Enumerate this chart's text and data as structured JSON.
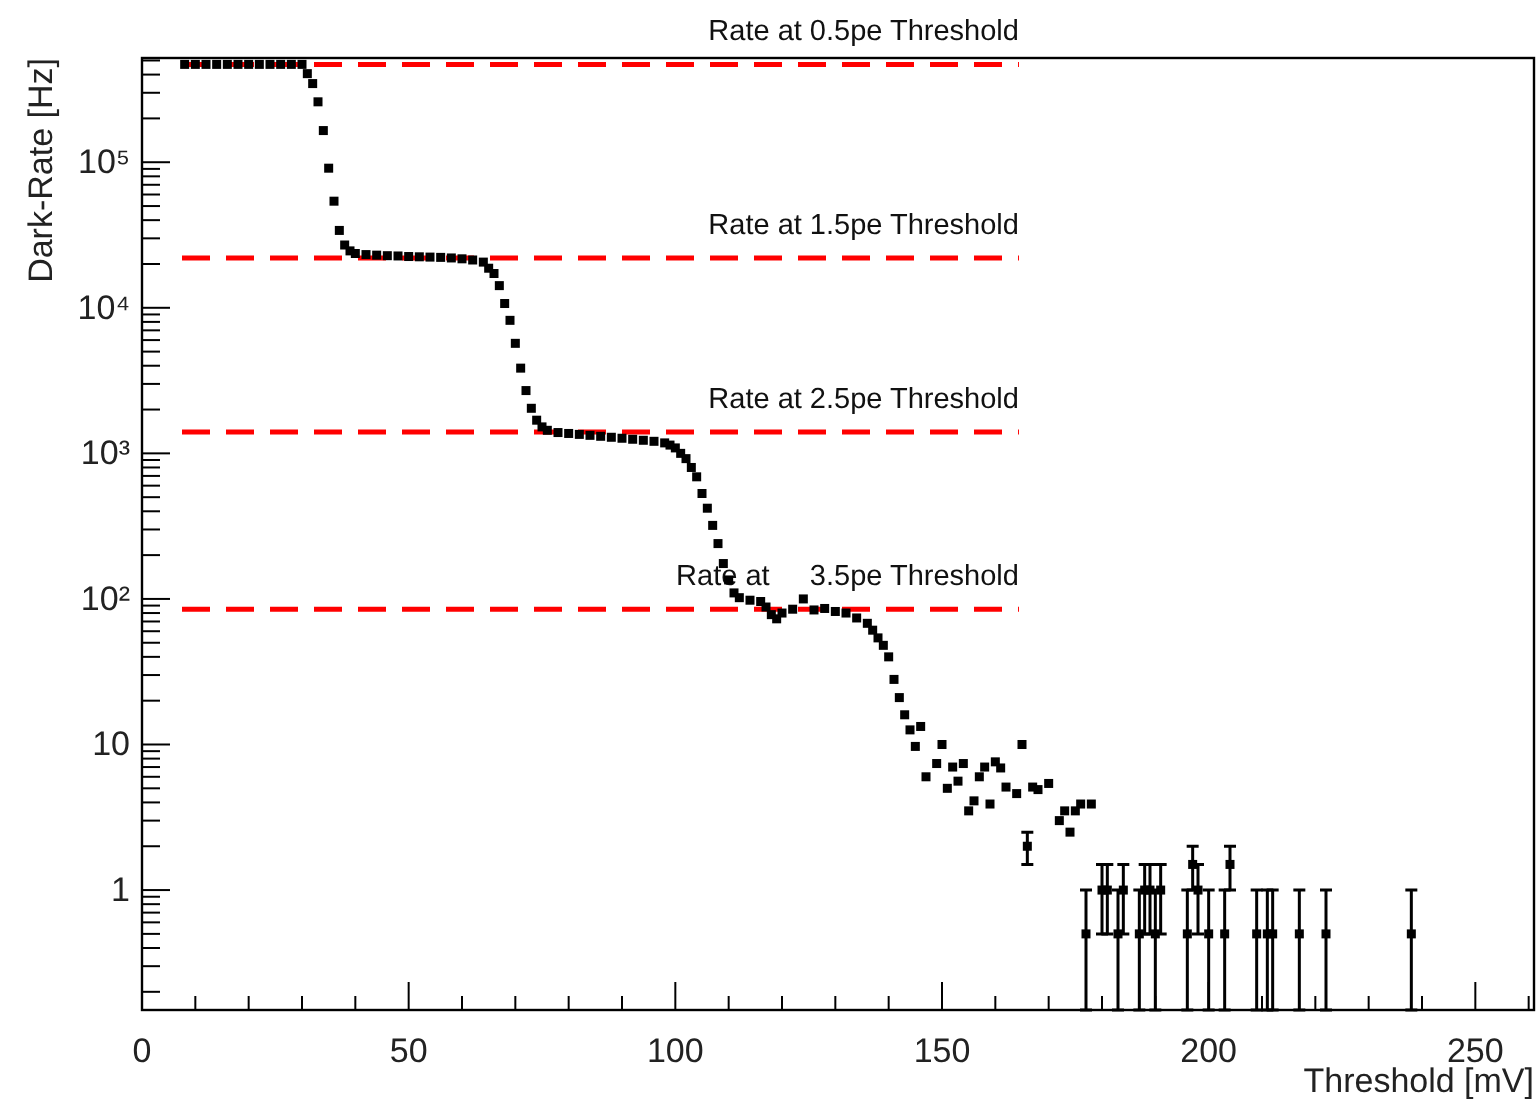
{
  "chart_data": {
    "type": "scatter",
    "xlabel": "Threshold [mV]",
    "ylabel": "Dark-Rate [Hz]",
    "log": "y",
    "marker": "square",
    "grid": false,
    "xlim": [
      0,
      261
    ],
    "ylim": [
      0.15,
      520000
    ],
    "xticks": [
      0,
      {
        "value": 10,
        "label": null
      },
      {
        "value": 20,
        "label": null
      },
      {
        "value": 30,
        "label": null
      },
      {
        "value": 40,
        "label": null
      },
      50,
      {
        "value": 60,
        "label": null
      },
      {
        "value": 70,
        "label": null
      },
      {
        "value": 80,
        "label": null
      },
      {
        "value": 90,
        "label": null
      },
      100,
      {
        "value": 110,
        "label": null
      },
      {
        "value": 120,
        "label": null
      },
      {
        "value": 130,
        "label": null
      },
      {
        "value": 140,
        "label": null
      },
      150,
      {
        "value": 160,
        "label": null
      },
      {
        "value": 170,
        "label": null
      },
      {
        "value": 180,
        "label": null
      },
      {
        "value": 190,
        "label": null
      },
      200,
      {
        "value": 210,
        "label": null
      },
      {
        "value": 220,
        "label": null
      },
      {
        "value": 230,
        "label": null
      },
      {
        "value": 240,
        "label": null
      },
      250,
      {
        "value": 260,
        "label": null
      }
    ],
    "yticks": [
      {
        "value": 0.2,
        "label": null
      },
      {
        "value": 0.3,
        "label": null
      },
      {
        "value": 0.4,
        "label": null
      },
      {
        "value": 0.5,
        "label": null
      },
      {
        "value": 0.6,
        "label": null
      },
      {
        "value": 0.7,
        "label": null
      },
      {
        "value": 0.8,
        "label": null
      },
      {
        "value": 0.9,
        "label": null
      },
      1,
      {
        "value": 2,
        "label": null
      },
      {
        "value": 3,
        "label": null
      },
      {
        "value": 4,
        "label": null
      },
      {
        "value": 5,
        "label": null
      },
      {
        "value": 6,
        "label": null
      },
      {
        "value": 7,
        "label": null
      },
      {
        "value": 8,
        "label": null
      },
      {
        "value": 9,
        "label": null
      },
      10,
      {
        "value": 20,
        "label": null
      },
      {
        "value": 30,
        "label": null
      },
      {
        "value": 40,
        "label": null
      },
      {
        "value": 50,
        "label": null
      },
      {
        "value": 60,
        "label": null
      },
      {
        "value": 70,
        "label": null
      },
      {
        "value": 80,
        "label": null
      },
      {
        "value": 90,
        "label": null
      },
      {
        "value": 100,
        "label": "10²"
      },
      {
        "value": 200,
        "label": null
      },
      {
        "value": 300,
        "label": null
      },
      {
        "value": 400,
        "label": null
      },
      {
        "value": 500,
        "label": null
      },
      {
        "value": 600,
        "label": null
      },
      {
        "value": 700,
        "label": null
      },
      {
        "value": 800,
        "label": null
      },
      {
        "value": 900,
        "label": null
      },
      {
        "value": 1000,
        "label": "10³"
      },
      {
        "value": 2000,
        "label": null
      },
      {
        "value": 3000,
        "label": null
      },
      {
        "value": 4000,
        "label": null
      },
      {
        "value": 5000,
        "label": null
      },
      {
        "value": 6000,
        "label": null
      },
      {
        "value": 7000,
        "label": null
      },
      {
        "value": 8000,
        "label": null
      },
      {
        "value": 9000,
        "label": null
      },
      {
        "value": 10000,
        "label": "10⁴"
      },
      {
        "value": 20000,
        "label": null
      },
      {
        "value": 30000,
        "label": null
      },
      {
        "value": 40000,
        "label": null
      },
      {
        "value": 50000,
        "label": null
      },
      {
        "value": 60000,
        "label": null
      },
      {
        "value": 70000,
        "label": null
      },
      {
        "value": 80000,
        "label": null
      },
      {
        "value": 90000,
        "label": null
      },
      {
        "value": 100000,
        "label": "10⁵"
      },
      {
        "value": 200000,
        "label": null
      },
      {
        "value": 300000,
        "label": null
      },
      {
        "value": 400000,
        "label": null
      },
      {
        "value": 500000,
        "label": null
      }
    ],
    "ref_lines": [
      {
        "axis": "y",
        "value": 470000,
        "label": "Rate at 0.5pe Threshold",
        "color": "#ff0000",
        "line_style": "dashed"
      },
      {
        "axis": "y",
        "value": 22000,
        "label": "Rate at 1.5pe Threshold",
        "color": "#ff0000",
        "line_style": "dashed"
      },
      {
        "axis": "y",
        "value": 1400,
        "label": "Rate at 2.5pe Threshold",
        "color": "#ff0000",
        "line_style": "dashed"
      },
      {
        "axis": "y",
        "value": 85,
        "label": "Rate at     3.5pe Threshold",
        "color": "#ff0000",
        "line_style": "dashed"
      }
    ],
    "series": [
      {
        "color": "#000000",
        "x": [
          8,
          10,
          12,
          14,
          16,
          18,
          20,
          22,
          24,
          26,
          28,
          30,
          31,
          32,
          33,
          34,
          35,
          36,
          37,
          38,
          39,
          40,
          42,
          44,
          46,
          48,
          50,
          52,
          54,
          56,
          58,
          60,
          62,
          64,
          65,
          66,
          67,
          68,
          69,
          70,
          71,
          72,
          73,
          74,
          75,
          76,
          78,
          80,
          82,
          84,
          86,
          88,
          90,
          92,
          94,
          96,
          98,
          99,
          100,
          101,
          102,
          103,
          104,
          105,
          106,
          107,
          108,
          109,
          110,
          111,
          112,
          114,
          116,
          117,
          118,
          119,
          120,
          122,
          124,
          126,
          128,
          130,
          132,
          134,
          136,
          137,
          138,
          139,
          140,
          141,
          142,
          143,
          144,
          145,
          146,
          147,
          149,
          150,
          151,
          152,
          153,
          154,
          155,
          156,
          157,
          158,
          159,
          160,
          161,
          162,
          164,
          165,
          166,
          167,
          168,
          170,
          172,
          173,
          174,
          175,
          176,
          178,
          177,
          180,
          181,
          183,
          184,
          187,
          188,
          189,
          190,
          191,
          196,
          197,
          198,
          200,
          203,
          204,
          209,
          211,
          212,
          217,
          222,
          238
        ],
        "values": [
          470000,
          470000,
          470000,
          470000,
          470000,
          470000,
          470000,
          470000,
          470000,
          470000,
          470000,
          470000,
          406000,
          347000,
          260000,
          165000,
          91000,
          54000,
          34000,
          27000,
          24600,
          23600,
          23200,
          23000,
          22800,
          22700,
          22500,
          22400,
          22300,
          22200,
          22000,
          21700,
          21300,
          20600,
          18700,
          17200,
          14200,
          10700,
          8200,
          5700,
          3850,
          2700,
          2040,
          1690,
          1520,
          1440,
          1390,
          1370,
          1350,
          1330,
          1310,
          1290,
          1270,
          1250,
          1230,
          1210,
          1180,
          1140,
          1090,
          1000,
          920,
          800,
          690,
          530,
          420,
          320,
          240,
          175,
          135,
          110,
          102,
          98,
          96,
          88,
          78,
          73,
          80,
          85,
          100,
          84,
          86,
          82,
          80,
          74,
          68,
          61,
          54,
          48,
          40,
          28,
          21,
          16,
          12.6,
          9.7,
          13.3,
          6,
          7.4,
          10,
          5,
          7,
          5.6,
          7.4,
          3.5,
          4.1,
          6,
          7,
          3.9,
          7.6,
          6.9,
          5.1,
          4.6,
          10,
          2,
          5.1,
          4.9,
          5.4,
          3,
          3.5,
          2.5,
          3.5,
          3.9,
          3.9,
          0.5,
          1,
          1,
          0.5,
          1,
          0.5,
          1,
          1,
          0.5,
          1,
          0.5,
          1.5,
          1,
          0.5,
          0.5,
          1.5,
          0.5,
          0.5,
          0.5,
          0.5,
          0.5,
          0.5
        ],
        "errors": [
          null,
          null,
          null,
          null,
          null,
          null,
          null,
          null,
          null,
          null,
          null,
          null,
          null,
          null,
          null,
          null,
          null,
          null,
          null,
          null,
          null,
          null,
          null,
          null,
          null,
          null,
          null,
          null,
          null,
          null,
          null,
          null,
          null,
          null,
          null,
          null,
          null,
          null,
          null,
          null,
          null,
          null,
          null,
          null,
          null,
          null,
          null,
          null,
          null,
          null,
          null,
          null,
          null,
          null,
          null,
          null,
          null,
          null,
          null,
          null,
          null,
          null,
          null,
          null,
          null,
          null,
          null,
          null,
          null,
          null,
          null,
          null,
          null,
          null,
          null,
          null,
          null,
          null,
          null,
          null,
          null,
          null,
          null,
          null,
          null,
          null,
          null,
          null,
          null,
          null,
          null,
          null,
          null,
          null,
          null,
          null,
          null,
          null,
          null,
          null,
          null,
          null,
          null,
          null,
          null,
          null,
          null,
          null,
          null,
          null,
          null,
          null,
          [
            1.5,
            2.5
          ],
          null,
          null,
          null,
          null,
          null,
          null,
          null,
          null,
          null,
          [
            0.15,
            1
          ],
          [
            0.5,
            1.5
          ],
          [
            0.5,
            1.5
          ],
          [
            0.15,
            1
          ],
          [
            0.5,
            1.5
          ],
          [
            0.15,
            1
          ],
          [
            0.5,
            1.5
          ],
          [
            0.5,
            1.5
          ],
          [
            0.15,
            1
          ],
          [
            0.5,
            1.5
          ],
          [
            0.15,
            1
          ],
          [
            1,
            2
          ],
          [
            0.5,
            1.5
          ],
          [
            0.15,
            1
          ],
          [
            0.15,
            1
          ],
          [
            1,
            2
          ],
          [
            0.15,
            1
          ],
          [
            0.15,
            1
          ],
          [
            0.15,
            1
          ],
          [
            0.15,
            1
          ],
          [
            0.15,
            1
          ],
          [
            0.15,
            1
          ]
        ]
      }
    ]
  }
}
